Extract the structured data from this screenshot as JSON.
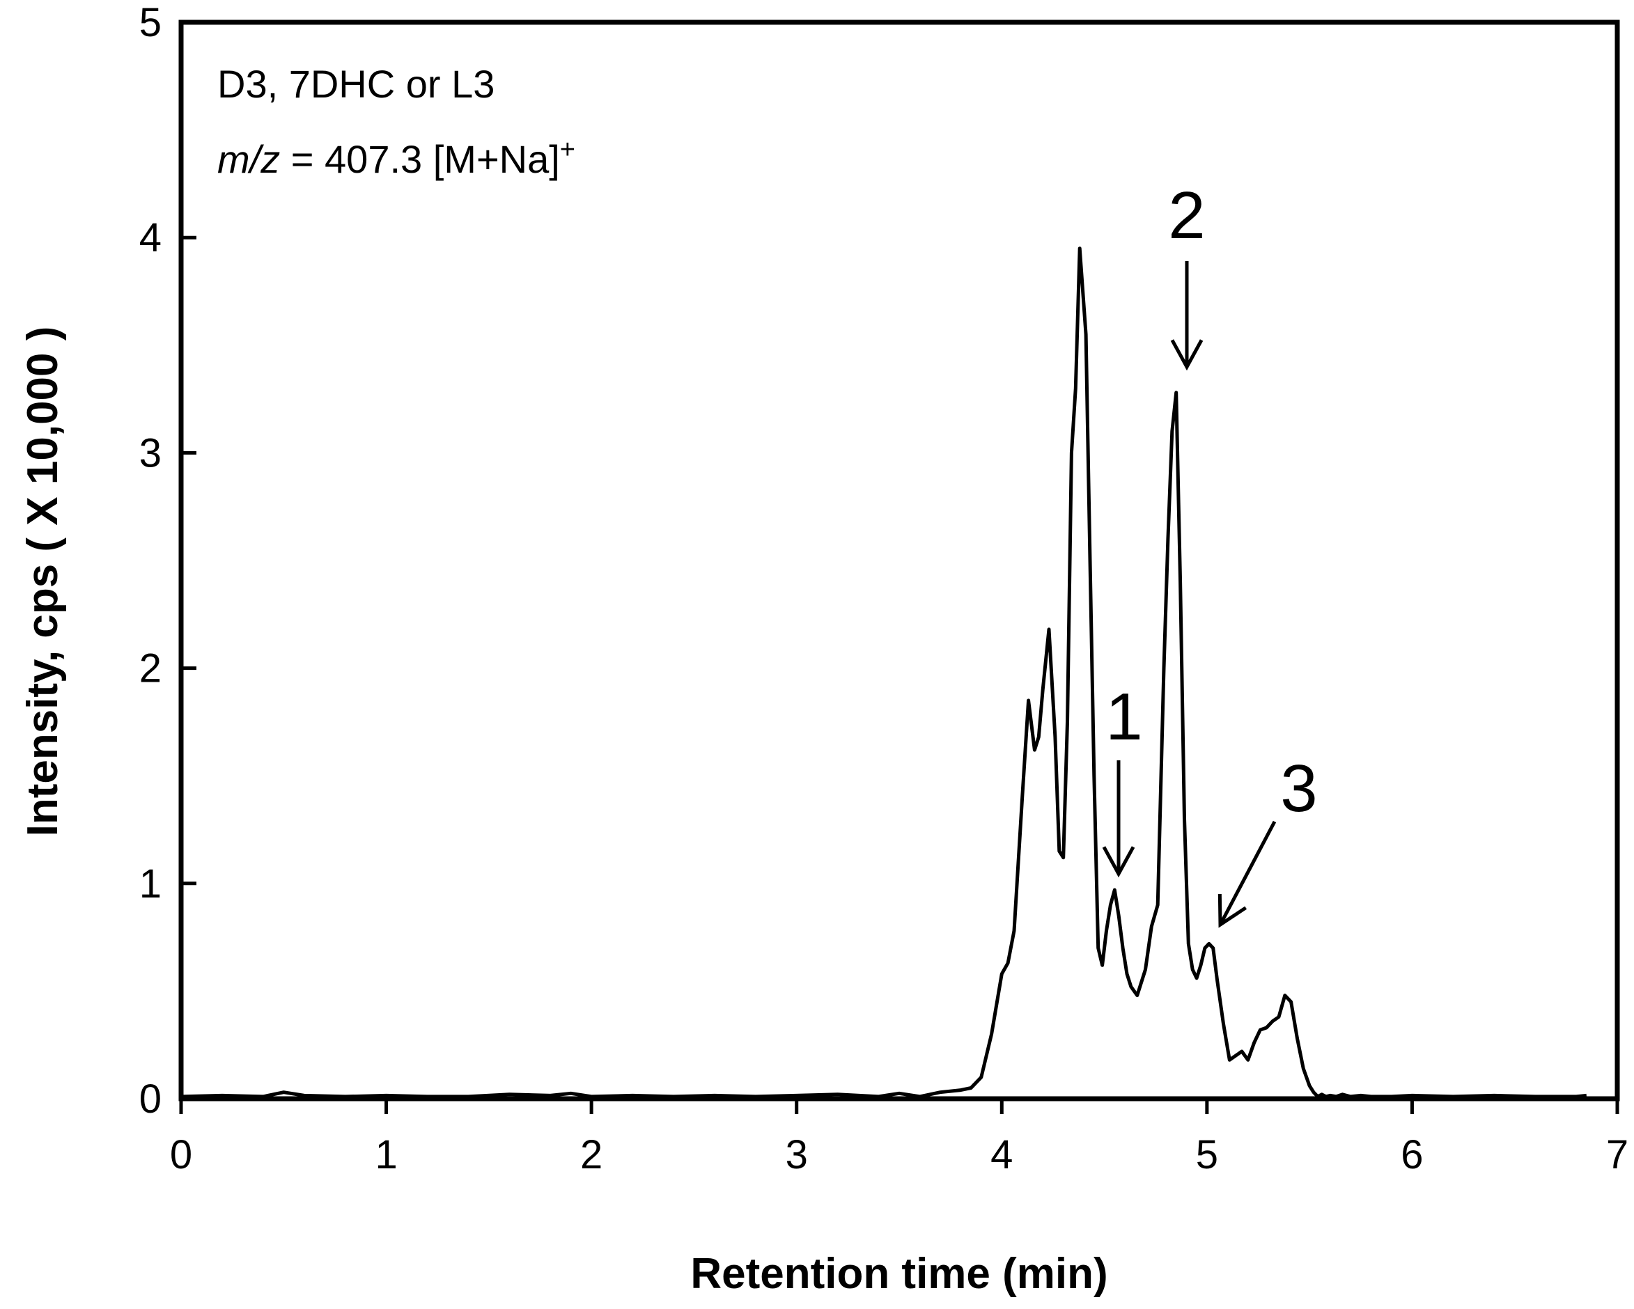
{
  "chart_data": {
    "type": "line",
    "title": "",
    "xlabel": "Retention time (min)",
    "ylabel": "Intensity, cps ( X 10,000 )",
    "xlim": [
      0,
      7
    ],
    "ylim": [
      0,
      5
    ],
    "xticks": [
      "0",
      "1",
      "2",
      "3",
      "4",
      "5",
      "6",
      "7"
    ],
    "yticks": [
      "0",
      "1",
      "2",
      "3",
      "4",
      "5"
    ],
    "grid": false,
    "annotation": {
      "line1": "D3, 7DHC or L3",
      "line2_italic": "m/z",
      "line2_rest": " = 407.3 [M+Na]",
      "line2_sup": "+"
    },
    "peak_labels": [
      {
        "label": "1",
        "x": 4.57,
        "y": 0.97
      },
      {
        "label": "2",
        "x": 4.9,
        "y": 3.28
      },
      {
        "label": "3",
        "x": 5.08,
        "y": 0.73
      }
    ],
    "series": [
      {
        "x": [
          0,
          0.2,
          0.4,
          0.5,
          0.6,
          0.8,
          1.0,
          1.2,
          1.4,
          1.6,
          1.8,
          1.9,
          2.0,
          2.2,
          2.4,
          2.6,
          2.8,
          3.0,
          3.2,
          3.4,
          3.5,
          3.6,
          3.7,
          3.8,
          3.85,
          3.9,
          3.95,
          4.0,
          4.03,
          4.06,
          4.1,
          4.13,
          4.16,
          4.18,
          4.2,
          4.23,
          4.26,
          4.28,
          4.3,
          4.32,
          4.34,
          4.36,
          4.38,
          4.41,
          4.43,
          4.45,
          4.47,
          4.49,
          4.51,
          4.53,
          4.55,
          4.57,
          4.59,
          4.61,
          4.63,
          4.66,
          4.7,
          4.73,
          4.76,
          4.79,
          4.81,
          4.83,
          4.85,
          4.87,
          4.89,
          4.91,
          4.93,
          4.95,
          4.97,
          4.99,
          5.01,
          5.03,
          5.05,
          5.08,
          5.11,
          5.14,
          5.17,
          5.2,
          5.23,
          5.26,
          5.29,
          5.32,
          5.35,
          5.38,
          5.41,
          5.44,
          5.47,
          5.5,
          5.52,
          5.54,
          5.56,
          5.58,
          5.6,
          5.63,
          5.66,
          5.7,
          5.75,
          5.8,
          5.9,
          6.0,
          6.2,
          6.4,
          6.6,
          6.8,
          6.85
        ],
        "y": [
          0.01,
          0.015,
          0.01,
          0.03,
          0.015,
          0.01,
          0.015,
          0.01,
          0.01,
          0.02,
          0.015,
          0.025,
          0.01,
          0.015,
          0.01,
          0.015,
          0.01,
          0.015,
          0.02,
          0.01,
          0.025,
          0.01,
          0.03,
          0.04,
          0.05,
          0.1,
          0.3,
          0.58,
          0.63,
          0.78,
          1.4,
          1.85,
          1.62,
          1.68,
          1.9,
          2.18,
          1.68,
          1.15,
          1.12,
          1.75,
          3.0,
          3.3,
          3.95,
          3.55,
          2.5,
          1.5,
          0.7,
          0.62,
          0.78,
          0.9,
          0.97,
          0.85,
          0.7,
          0.58,
          0.52,
          0.48,
          0.6,
          0.8,
          0.9,
          2.0,
          2.6,
          3.1,
          3.28,
          2.4,
          1.3,
          0.72,
          0.6,
          0.56,
          0.62,
          0.7,
          0.72,
          0.7,
          0.55,
          0.35,
          0.18,
          0.2,
          0.22,
          0.18,
          0.26,
          0.32,
          0.33,
          0.36,
          0.38,
          0.48,
          0.45,
          0.28,
          0.14,
          0.06,
          0.03,
          0.01,
          0.02,
          0.01,
          0.015,
          0.01,
          0.02,
          0.01,
          0.015,
          0.01,
          0.01,
          0.015,
          0.01,
          0.015,
          0.01,
          0.01,
          0.015
        ]
      }
    ]
  }
}
